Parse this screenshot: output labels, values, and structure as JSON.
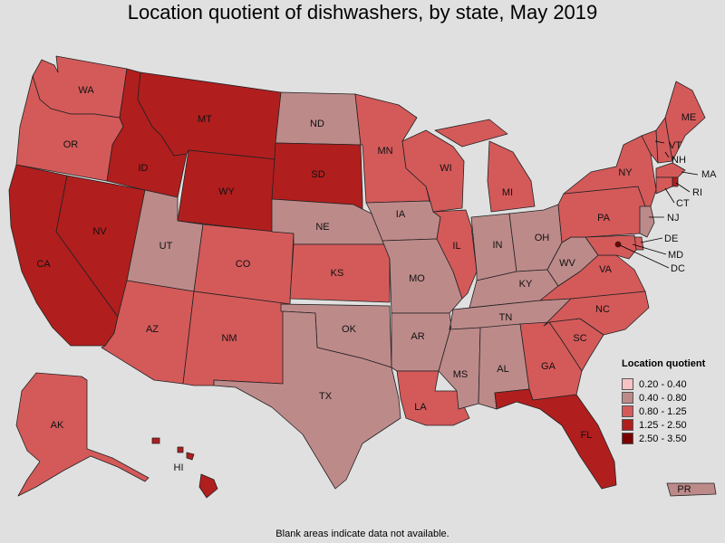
{
  "title": "Location quotient of dishwashers, by state, May 2019",
  "footnote": "Blank areas indicate data not available.",
  "colors": {
    "c1": "#f6c3c3",
    "c2": "#bd8a8a",
    "c3": "#d45a5a",
    "c4": "#b11e1e",
    "c5": "#7a0000",
    "background": "#e0e0e0"
  },
  "legend": {
    "title": "Location quotient",
    "items": [
      {
        "label": "0.20 - 0.40",
        "color": "#f6c3c3"
      },
      {
        "label": "0.40 - 0.80",
        "color": "#bd8a8a"
      },
      {
        "label": "0.80 - 1.25",
        "color": "#d45a5a"
      },
      {
        "label": "1.25 - 2.50",
        "color": "#b11e1e"
      },
      {
        "label": "2.50 - 3.50",
        "color": "#7a0000"
      }
    ]
  },
  "states": [
    {
      "abbr": "WA",
      "cls": "0.80 - 1.25"
    },
    {
      "abbr": "OR",
      "cls": "0.80 - 1.25"
    },
    {
      "abbr": "CA",
      "cls": "1.25 - 2.50"
    },
    {
      "abbr": "NV",
      "cls": "1.25 - 2.50"
    },
    {
      "abbr": "ID",
      "cls": "1.25 - 2.50"
    },
    {
      "abbr": "MT",
      "cls": "1.25 - 2.50"
    },
    {
      "abbr": "WY",
      "cls": "1.25 - 2.50"
    },
    {
      "abbr": "UT",
      "cls": "0.40 - 0.80"
    },
    {
      "abbr": "AZ",
      "cls": "0.80 - 1.25"
    },
    {
      "abbr": "CO",
      "cls": "0.80 - 1.25"
    },
    {
      "abbr": "NM",
      "cls": "0.80 - 1.25"
    },
    {
      "abbr": "ND",
      "cls": "0.40 - 0.80"
    },
    {
      "abbr": "SD",
      "cls": "1.25 - 2.50"
    },
    {
      "abbr": "NE",
      "cls": "0.40 - 0.80"
    },
    {
      "abbr": "KS",
      "cls": "0.80 - 1.25"
    },
    {
      "abbr": "OK",
      "cls": "0.40 - 0.80"
    },
    {
      "abbr": "TX",
      "cls": "0.40 - 0.80"
    },
    {
      "abbr": "MN",
      "cls": "0.80 - 1.25"
    },
    {
      "abbr": "IA",
      "cls": "0.40 - 0.80"
    },
    {
      "abbr": "MO",
      "cls": "0.40 - 0.80"
    },
    {
      "abbr": "AR",
      "cls": "0.40 - 0.80"
    },
    {
      "abbr": "LA",
      "cls": "0.80 - 1.25"
    },
    {
      "abbr": "WI",
      "cls": "0.80 - 1.25"
    },
    {
      "abbr": "IL",
      "cls": "0.80 - 1.25"
    },
    {
      "abbr": "MI",
      "cls": "0.80 - 1.25"
    },
    {
      "abbr": "IN",
      "cls": "0.40 - 0.80"
    },
    {
      "abbr": "OH",
      "cls": "0.40 - 0.80"
    },
    {
      "abbr": "KY",
      "cls": "0.40 - 0.80"
    },
    {
      "abbr": "TN",
      "cls": "0.40 - 0.80"
    },
    {
      "abbr": "MS",
      "cls": "0.40 - 0.80"
    },
    {
      "abbr": "AL",
      "cls": "0.40 - 0.80"
    },
    {
      "abbr": "GA",
      "cls": "0.80 - 1.25"
    },
    {
      "abbr": "FL",
      "cls": "1.25 - 2.50"
    },
    {
      "abbr": "SC",
      "cls": "0.80 - 1.25"
    },
    {
      "abbr": "NC",
      "cls": "0.80 - 1.25"
    },
    {
      "abbr": "VA",
      "cls": "0.80 - 1.25"
    },
    {
      "abbr": "WV",
      "cls": "0.40 - 0.80"
    },
    {
      "abbr": "PA",
      "cls": "0.80 - 1.25"
    },
    {
      "abbr": "NY",
      "cls": "0.80 - 1.25"
    },
    {
      "abbr": "VT",
      "cls": "0.80 - 1.25"
    },
    {
      "abbr": "NH",
      "cls": "0.80 - 1.25"
    },
    {
      "abbr": "ME",
      "cls": "0.80 - 1.25"
    },
    {
      "abbr": "MA",
      "cls": "0.80 - 1.25"
    },
    {
      "abbr": "RI",
      "cls": "1.25 - 2.50"
    },
    {
      "abbr": "CT",
      "cls": "0.80 - 1.25"
    },
    {
      "abbr": "NJ",
      "cls": "0.40 - 0.80"
    },
    {
      "abbr": "DE",
      "cls": "0.80 - 1.25"
    },
    {
      "abbr": "MD",
      "cls": "0.80 - 1.25"
    },
    {
      "abbr": "DC",
      "cls": "2.50 - 3.50"
    },
    {
      "abbr": "AK",
      "cls": "0.80 - 1.25"
    },
    {
      "abbr": "HI",
      "cls": "1.25 - 2.50"
    },
    {
      "abbr": "PR",
      "cls": "0.40 - 0.80"
    }
  ]
}
